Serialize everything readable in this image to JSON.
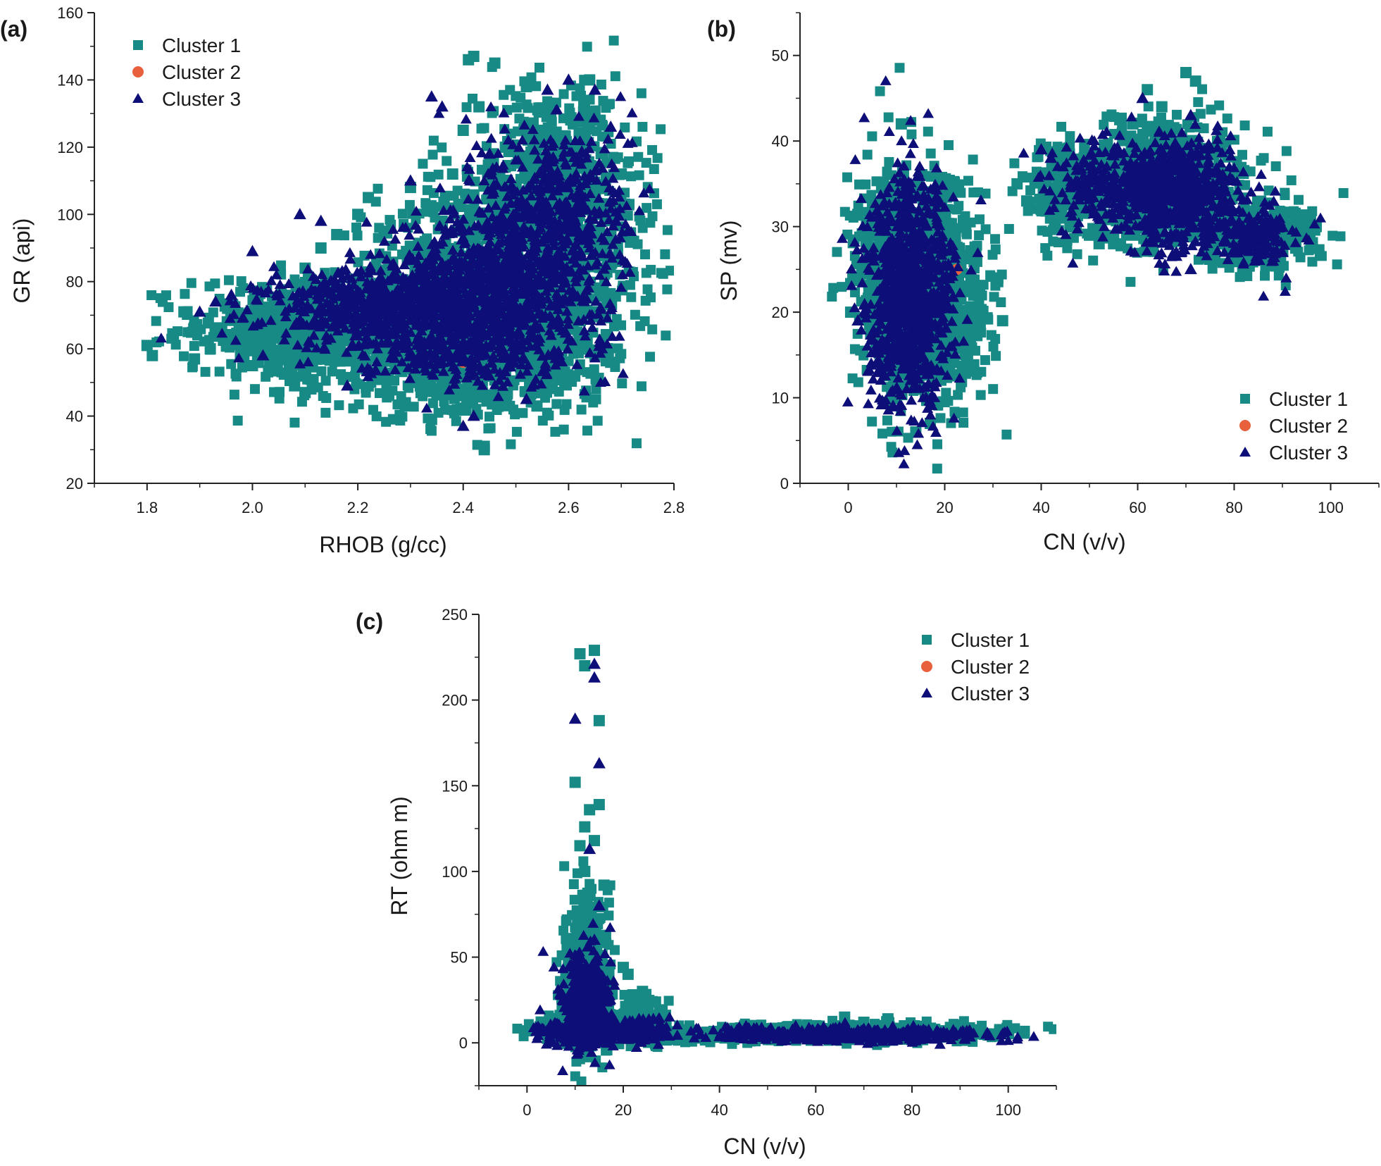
{
  "colors": {
    "cluster1": "#188a86",
    "cluster2": "#e8603c",
    "cluster3": "#0e0e78",
    "axis": "#222222"
  },
  "chart_data": [
    {
      "panel_label": "(a)",
      "type": "scatter",
      "xlabel": "RHOB (g/cc)",
      "ylabel": "GR (api)",
      "xlim": [
        1.7,
        2.8
      ],
      "ylim": [
        20,
        160
      ],
      "xticks": [
        1.8,
        2.0,
        2.2,
        2.4,
        2.6,
        2.8
      ],
      "yticks": [
        20,
        40,
        60,
        80,
        100,
        120,
        140,
        160
      ],
      "xtick_labels": [
        "1.8",
        "2.0",
        "2.2",
        "2.4",
        "2.6",
        "2.8"
      ],
      "ytick_labels": [
        "20",
        "40",
        "60",
        "80",
        "100",
        "120",
        "140",
        "160"
      ],
      "legend_position": "top-left",
      "series": [
        {
          "name": "Cluster 1",
          "marker": "square",
          "color": "#188a86",
          "points": [
            [
              1.8,
              61
            ],
            [
              1.81,
              58
            ],
            [
              1.85,
              64
            ],
            [
              1.87,
              71
            ],
            [
              1.89,
              57
            ],
            [
              1.92,
              60
            ],
            [
              1.95,
              64
            ],
            [
              1.98,
              59
            ],
            [
              2.0,
              55
            ],
            [
              2.02,
              70
            ],
            [
              2.05,
              67
            ],
            [
              2.08,
              49
            ],
            [
              2.1,
              47
            ],
            [
              2.1,
              84
            ],
            [
              2.13,
              90
            ],
            [
              2.16,
              94
            ],
            [
              2.2,
              100
            ],
            [
              2.22,
              105
            ],
            [
              2.25,
              95
            ],
            [
              2.3,
              108
            ],
            [
              2.32,
              47
            ],
            [
              2.34,
              39
            ],
            [
              2.36,
              98
            ],
            [
              2.38,
              112
            ],
            [
              2.4,
              125
            ],
            [
              2.41,
              146
            ],
            [
              2.42,
              147
            ],
            [
              2.43,
              132
            ],
            [
              2.44,
              31
            ],
            [
              2.44,
              30
            ],
            [
              2.46,
              145
            ],
            [
              2.48,
              120
            ],
            [
              2.5,
              104
            ],
            [
              2.52,
              138
            ],
            [
              2.54,
              43
            ],
            [
              2.56,
              130
            ],
            [
              2.58,
              110
            ],
            [
              2.6,
              96
            ],
            [
              2.62,
              121
            ],
            [
              2.64,
              140
            ],
            [
              2.65,
              58
            ],
            [
              2.66,
              128
            ],
            [
              2.68,
              56
            ],
            [
              2.69,
              86
            ],
            [
              2.7,
              112
            ],
            [
              2.71,
              94
            ]
          ],
          "clouds": [
            {
              "cx": 2.22,
              "cy": 68,
              "sx": 0.16,
              "sy": 7,
              "n": 820
            },
            {
              "cx": 2.48,
              "cy": 78,
              "sx": 0.12,
              "sy": 16,
              "n": 1200
            },
            {
              "cx": 2.58,
              "cy": 108,
              "sx": 0.08,
              "sy": 15,
              "n": 650
            },
            {
              "cx": 2.07,
              "cy": 64,
              "sx": 0.08,
              "sy": 6,
              "n": 280
            },
            {
              "cx": 2.4,
              "cy": 52,
              "sx": 0.13,
              "sy": 6,
              "n": 350
            }
          ]
        },
        {
          "name": "Cluster 2",
          "marker": "circle",
          "color": "#e8603c",
          "points": [
            [
              2.4,
              56
            ]
          ],
          "clouds": []
        },
        {
          "name": "Cluster 3",
          "marker": "triangle",
          "color": "#0e0e78",
          "points": [
            [
              1.9,
              71
            ],
            [
              1.93,
              74
            ],
            [
              1.96,
              76
            ],
            [
              2.0,
              89
            ],
            [
              2.02,
              58
            ],
            [
              2.09,
              100
            ],
            [
              2.13,
              98
            ],
            [
              2.18,
              49
            ],
            [
              2.3,
              110
            ],
            [
              2.34,
              135
            ],
            [
              2.36,
              132
            ],
            [
              2.4,
              37
            ],
            [
              2.45,
              118
            ],
            [
              2.52,
              45
            ],
            [
              2.56,
              137
            ],
            [
              2.6,
              140
            ],
            [
              2.65,
              137
            ],
            [
              2.68,
              126
            ],
            [
              2.69,
              98
            ],
            [
              2.66,
              62
            ],
            [
              2.42,
              40
            ]
          ],
          "clouds": [
            {
              "cx": 2.26,
              "cy": 72,
              "sx": 0.12,
              "sy": 6,
              "n": 650
            },
            {
              "cx": 2.47,
              "cy": 80,
              "sx": 0.1,
              "sy": 11,
              "n": 800
            },
            {
              "cx": 2.58,
              "cy": 104,
              "sx": 0.07,
              "sy": 12,
              "n": 380
            },
            {
              "cx": 2.4,
              "cy": 60,
              "sx": 0.1,
              "sy": 5,
              "n": 230
            }
          ]
        }
      ]
    },
    {
      "panel_label": "(b)",
      "type": "scatter",
      "xlabel": "CN (v/v)",
      "ylabel": "SP (mv)",
      "xlim": [
        -10,
        110
      ],
      "ylim": [
        0,
        55
      ],
      "xticks": [
        0,
        20,
        40,
        60,
        80,
        100
      ],
      "yticks": [
        0,
        10,
        20,
        30,
        40,
        50
      ],
      "xtick_labels": [
        "0",
        "20",
        "40",
        "60",
        "80",
        "100"
      ],
      "ytick_labels": [
        "0",
        "10",
        "20",
        "30",
        "40",
        "50"
      ],
      "legend_position": "bottom-right",
      "series": [
        {
          "name": "Cluster 1",
          "marker": "square",
          "color": "#188a86",
          "points": [
            [
              0.5,
              20
            ],
            [
              11,
              42
            ],
            [
              14,
              6
            ],
            [
              17,
              7
            ],
            [
              26,
              22
            ],
            [
              31,
              24
            ],
            [
              32,
              19
            ],
            [
              35,
              35
            ],
            [
              37,
              33
            ],
            [
              40,
              32
            ],
            [
              44,
              31
            ],
            [
              46,
              36
            ],
            [
              50,
              29
            ],
            [
              52,
              28
            ],
            [
              55,
              28
            ],
            [
              59,
              42
            ],
            [
              62,
              46
            ],
            [
              65,
              44
            ],
            [
              70,
              48
            ],
            [
              72,
              47
            ],
            [
              76,
              26
            ],
            [
              80,
              26
            ],
            [
              85,
              30
            ],
            [
              90,
              30
            ],
            [
              93,
              29
            ],
            [
              95,
              30
            ],
            [
              97,
              30
            ]
          ],
          "clouds": [
            {
              "cx": 13,
              "cy": 24,
              "sx": 5.5,
              "sy": 6.5,
              "n": 1100
            },
            {
              "cx": 22,
              "cy": 20,
              "sx": 4,
              "sy": 5,
              "n": 300
            },
            {
              "cx": 66,
              "cy": 35,
              "sx": 8,
              "sy": 3.5,
              "n": 900
            },
            {
              "cx": 45,
              "cy": 34,
              "sx": 4,
              "sy": 3,
              "n": 200
            },
            {
              "cx": 86,
              "cy": 29,
              "sx": 6,
              "sy": 2,
              "n": 220
            }
          ]
        },
        {
          "name": "Cluster 2",
          "marker": "circle",
          "color": "#e8603c",
          "points": [
            [
              22.5,
              25
            ]
          ],
          "clouds": []
        },
        {
          "name": "Cluster 3",
          "marker": "triangle",
          "color": "#0e0e78",
          "points": [
            [
              2,
              19
            ],
            [
              40,
              39
            ],
            [
              42,
              38
            ],
            [
              47,
              35
            ],
            [
              61,
              45
            ],
            [
              71,
              43
            ],
            [
              71,
              25
            ],
            [
              88,
              26
            ],
            [
              90,
              27
            ]
          ],
          "clouds": [
            {
              "cx": 13,
              "cy": 22,
              "sx": 4.5,
              "sy": 6.5,
              "n": 950
            },
            {
              "cx": 68,
              "cy": 34,
              "sx": 6,
              "sy": 3,
              "n": 700
            },
            {
              "cx": 52,
              "cy": 35,
              "sx": 5,
              "sy": 2.5,
              "n": 160
            },
            {
              "cx": 84,
              "cy": 29,
              "sx": 5,
              "sy": 1.8,
              "n": 160
            }
          ]
        }
      ]
    },
    {
      "panel_label": "(c)",
      "type": "scatter",
      "xlabel": "CN (v/v)",
      "ylabel": "RT (ohm m)",
      "xlim": [
        -10,
        110
      ],
      "ylim": [
        -25,
        250
      ],
      "xticks": [
        0,
        20,
        40,
        60,
        80,
        100
      ],
      "yticks": [
        0,
        50,
        100,
        150,
        200,
        250
      ],
      "xtick_labels": [
        "0",
        "20",
        "40",
        "60",
        "80",
        "100"
      ],
      "ytick_labels": [
        "0",
        "50",
        "100",
        "150",
        "200",
        "250"
      ],
      "legend_position": "top-right",
      "series": [
        {
          "name": "Cluster 1",
          "marker": "square",
          "color": "#188a86",
          "points": [
            [
              11,
              227
            ],
            [
              14,
              229
            ],
            [
              12,
              220
            ],
            [
              15,
              188
            ],
            [
              10,
              152
            ],
            [
              15,
              139
            ],
            [
              12,
              126
            ],
            [
              13,
              136
            ],
            [
              11,
              115
            ],
            [
              14,
              118
            ],
            [
              12,
              100
            ],
            [
              16,
              92
            ],
            [
              20,
              44
            ],
            [
              21,
              40
            ],
            [
              22,
              28
            ],
            [
              24,
              30
            ],
            [
              26,
              24
            ],
            [
              0,
              7
            ],
            [
              60,
              10
            ],
            [
              66,
              15
            ],
            [
              70,
              12
            ],
            [
              75,
              14
            ],
            [
              80,
              10
            ],
            [
              88,
              9
            ],
            [
              95,
              5
            ],
            [
              97,
              4
            ]
          ],
          "clouds": [
            {
              "cx": 12,
              "cy": 40,
              "sx": 2.2,
              "sy": 22,
              "n": 450
            },
            {
              "cx": 12,
              "cy": 8,
              "sx": 4,
              "sy": 4,
              "n": 500
            },
            {
              "cx": 24,
              "cy": 12,
              "sx": 3,
              "sy": 6,
              "n": 180
            },
            {
              "cx": 65,
              "cy": 6,
              "sx": 16,
              "sy": 2.5,
              "n": 650
            },
            {
              "cx": 38,
              "cy": 4,
              "sx": 6,
              "sy": 1.5,
              "n": 120
            }
          ]
        },
        {
          "name": "Cluster 2",
          "marker": "circle",
          "color": "#e8603c",
          "points": [
            [
              22.5,
              4
            ]
          ],
          "clouds": []
        },
        {
          "name": "Cluster 3",
          "marker": "triangle",
          "color": "#0e0e78",
          "points": [
            [
              10,
              189
            ],
            [
              14,
              221
            ],
            [
              14,
              213
            ],
            [
              15,
              163
            ],
            [
              13,
              113
            ],
            [
              15,
              80
            ],
            [
              14,
              60
            ],
            [
              2,
              7
            ],
            [
              36,
              5
            ],
            [
              45,
              5
            ],
            [
              70,
              8
            ],
            [
              85,
              6
            ],
            [
              92,
              6
            ]
          ],
          "clouds": [
            {
              "cx": 12,
              "cy": 24,
              "sx": 2.5,
              "sy": 14,
              "n": 400
            },
            {
              "cx": 12,
              "cy": 6,
              "sx": 4,
              "sy": 3,
              "n": 450
            },
            {
              "cx": 24,
              "cy": 8,
              "sx": 3,
              "sy": 4,
              "n": 120
            },
            {
              "cx": 66,
              "cy": 5,
              "sx": 15,
              "sy": 2,
              "n": 520
            }
          ]
        }
      ]
    }
  ]
}
